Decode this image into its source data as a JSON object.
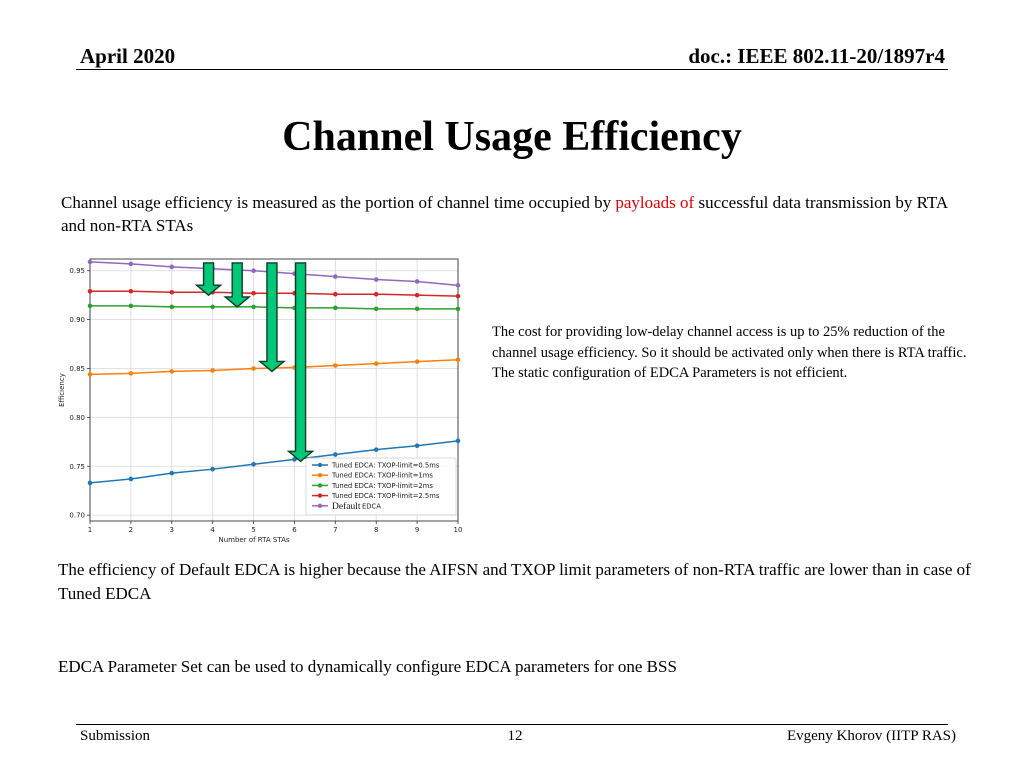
{
  "header": {
    "left": "April 2020",
    "right": "doc.: IEEE 802.11-20/1897r4"
  },
  "title": "Channel Usage Efficiency",
  "intro": {
    "before": "Channel usage efficiency is measured as the portion of channel time occupied by ",
    "highlight": "payloads of",
    "after": " successful data transmission by RTA and non-RTA STAs"
  },
  "side_note": "The cost for providing low-delay channel access is up to 25% reduction of the channel usage efficiency. So it should be activated only when there is RTA traffic. The static configuration of EDCA Parameters is not efficient.",
  "paragraph_1": "The efficiency of Default  EDCA is higher because the AIFSN and TXOP limit parameters of non-RTA traffic are lower than in case of Tuned EDCA",
  "paragraph_2": "EDCA Parameter Set can be used to dynamically configure EDCA parameters for one BSS",
  "footer": {
    "left": "Submission",
    "center": "12",
    "right": "Evgeny Khorov (IITP RAS)"
  },
  "chart_data": {
    "type": "line",
    "xlabel": "Number of RTA STAs",
    "ylabel": "Efficiency",
    "x": [
      1,
      2,
      3,
      4,
      5,
      6,
      7,
      8,
      9,
      10
    ],
    "xlim": [
      1,
      10
    ],
    "ylim": [
      0.694,
      0.962
    ],
    "x_ticks": [
      1,
      2,
      3,
      4,
      5,
      6,
      7,
      8,
      9,
      10
    ],
    "y_ticks": [
      0.7,
      0.75,
      0.8,
      0.85,
      0.9,
      0.95
    ],
    "grid": true,
    "legend_position": "bottom-right",
    "series": [
      {
        "name": "Tuned EDCA: TXOP-limit=0.5ms",
        "color": "#1f77b4",
        "values": [
          0.733,
          0.737,
          0.743,
          0.747,
          0.752,
          0.757,
          0.762,
          0.767,
          0.771,
          0.776
        ]
      },
      {
        "name": "Tuned EDCA: TXOP-limit=1ms",
        "color": "#ff7f0e",
        "values": [
          0.844,
          0.845,
          0.847,
          0.848,
          0.85,
          0.851,
          0.853,
          0.855,
          0.857,
          0.859
        ]
      },
      {
        "name": "Tuned EDCA: TXOP-limit=2ms",
        "color": "#2ca02c",
        "values": [
          0.914,
          0.914,
          0.913,
          0.913,
          0.913,
          0.912,
          0.912,
          0.911,
          0.911,
          0.911
        ]
      },
      {
        "name": "Tuned EDCA: TXOP-limit=2.5ms",
        "color": "#d62728",
        "values": [
          0.929,
          0.929,
          0.928,
          0.928,
          0.927,
          0.927,
          0.926,
          0.926,
          0.925,
          0.924
        ]
      },
      {
        "name": "Default",
        "legend_suffix": "EDCA",
        "color": "#9467bd",
        "values": [
          0.959,
          0.957,
          0.954,
          0.952,
          0.95,
          0.947,
          0.944,
          0.941,
          0.939,
          0.935
        ]
      }
    ],
    "annotation_arrows": [
      {
        "x": 3.9,
        "from": 0.958,
        "to": 0.925
      },
      {
        "x": 4.6,
        "from": 0.958,
        "to": 0.913
      },
      {
        "x": 5.45,
        "from": 0.958,
        "to": 0.847
      },
      {
        "x": 6.15,
        "from": 0.958,
        "to": 0.755
      }
    ],
    "arrow_color": "#00c878"
  }
}
